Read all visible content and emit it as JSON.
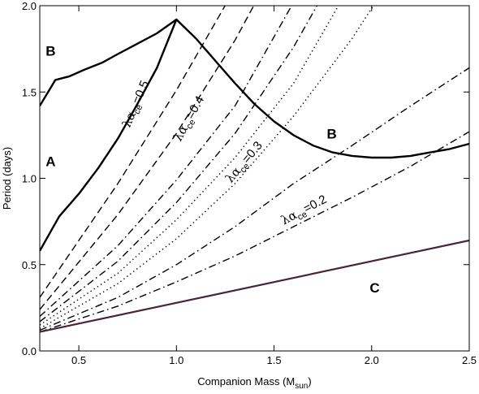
{
  "chart_data": {
    "type": "line",
    "xlabel": {
      "main": "Companion Mass (M",
      "sub": "sun",
      "close": ")"
    },
    "ylabel": "Period (days)",
    "xlim": [
      0.3,
      2.5
    ],
    "ylim": [
      0.0,
      2.0
    ],
    "xticks": [
      "0.5",
      "1.0",
      "1.5",
      "2.0",
      "2.5"
    ],
    "xtick_values": [
      0.5,
      1.0,
      1.5,
      2.0,
      2.5
    ],
    "yticks": [
      "0.0",
      "0.5",
      "1.0",
      "1.5",
      "2.0"
    ],
    "ytick_values": [
      0.0,
      0.5,
      1.0,
      1.5,
      2.0
    ],
    "grid": false,
    "region_labels": [
      {
        "text": "A",
        "x": 0.33,
        "y": 1.07
      },
      {
        "text": "B",
        "x": 0.33,
        "y": 1.71
      },
      {
        "text": "B",
        "x": 1.77,
        "y": 1.23
      },
      {
        "text": "C",
        "x": 1.99,
        "y": 0.34
      }
    ],
    "curve_labels": [
      {
        "prefix": "λα",
        "sub": "ce",
        "value": "=0.5",
        "x": 0.76,
        "y": 1.29,
        "angle": -67
      },
      {
        "prefix": "λα",
        "sub": "ce",
        "value": "=0.4",
        "x": 1.02,
        "y": 1.21,
        "angle": -61
      },
      {
        "prefix": "λα",
        "sub": "ce",
        "value": "=0.3",
        "x": 1.28,
        "y": 0.97,
        "angle": -50
      },
      {
        "prefix": "λα",
        "sub": "ce",
        "value": "=0.2",
        "x": 1.55,
        "y": 0.73,
        "angle": -28
      }
    ],
    "series": [
      {
        "style": "solid",
        "width": 2.4,
        "color": "#000000",
        "x": [
          0.3,
          0.4,
          0.5,
          0.6,
          0.7,
          0.8,
          0.9,
          1.0
        ],
        "y": [
          0.58,
          0.78,
          0.91,
          1.06,
          1.23,
          1.43,
          1.64,
          1.92
        ]
      },
      {
        "style": "solid",
        "width": 2.4,
        "color": "#000000",
        "x": [
          0.3,
          0.38,
          0.45,
          0.53,
          0.62,
          0.7,
          0.8,
          0.9,
          1.0,
          1.1,
          1.2,
          1.3,
          1.4,
          1.5,
          1.6,
          1.7,
          1.8,
          1.9,
          2.0,
          2.1,
          2.2,
          2.3,
          2.4,
          2.5
        ],
        "y": [
          1.42,
          1.57,
          1.59,
          1.63,
          1.67,
          1.72,
          1.78,
          1.84,
          1.92,
          1.81,
          1.68,
          1.55,
          1.43,
          1.33,
          1.25,
          1.19,
          1.15,
          1.13,
          1.12,
          1.12,
          1.13,
          1.15,
          1.17,
          1.2
        ]
      },
      {
        "style": "dashed",
        "width": 1.4,
        "color": "#000000",
        "x": [
          0.3,
          0.7,
          1.0,
          1.3
        ],
        "y": [
          0.31,
          0.97,
          1.51,
          2.1
        ]
      },
      {
        "style": "dashed",
        "width": 1.4,
        "color": "#000000",
        "x": [
          0.3,
          0.7,
          1.0,
          1.3,
          1.42
        ],
        "y": [
          0.24,
          0.79,
          1.26,
          1.8,
          2.05
        ]
      },
      {
        "style": "dashdot",
        "width": 1.4,
        "color": "#000000",
        "x": [
          0.3,
          0.7,
          1.0,
          1.3,
          1.6
        ],
        "y": [
          0.2,
          0.61,
          0.99,
          1.42,
          2.02
        ]
      },
      {
        "style": "dashdot",
        "width": 1.4,
        "color": "#000000",
        "x": [
          0.3,
          0.7,
          1.0,
          1.3,
          1.6,
          1.73
        ],
        "y": [
          0.17,
          0.52,
          0.86,
          1.26,
          1.76,
          2.02
        ]
      },
      {
        "style": "dotted",
        "width": 1.4,
        "color": "#000000",
        "x": [
          0.3,
          0.7,
          1.0,
          1.3,
          1.6,
          1.84
        ],
        "y": [
          0.15,
          0.45,
          0.76,
          1.12,
          1.55,
          2.02
        ]
      },
      {
        "style": "dotted",
        "width": 1.4,
        "color": "#000000",
        "x": [
          0.3,
          0.7,
          1.0,
          1.3,
          1.6,
          1.9,
          2.02
        ],
        "y": [
          0.13,
          0.39,
          0.65,
          0.97,
          1.36,
          1.81,
          2.02
        ]
      },
      {
        "style": "dashdot",
        "width": 1.4,
        "color": "#000000",
        "x": [
          0.3,
          0.7,
          1.0,
          1.3,
          1.6,
          1.9,
          2.2,
          2.5
        ],
        "y": [
          0.12,
          0.31,
          0.5,
          0.72,
          0.97,
          1.19,
          1.42,
          1.64
        ]
      },
      {
        "style": "dashdot",
        "width": 1.4,
        "color": "#000000",
        "x": [
          0.3,
          0.7,
          1.0,
          1.3,
          1.6,
          1.9,
          2.2,
          2.5
        ],
        "y": [
          0.11,
          0.26,
          0.4,
          0.55,
          0.72,
          0.89,
          1.07,
          1.27
        ]
      },
      {
        "style": "solid",
        "width": 2.2,
        "color": "#4a2438",
        "x": [
          0.3,
          2.5
        ],
        "y": [
          0.11,
          0.64
        ]
      }
    ]
  }
}
